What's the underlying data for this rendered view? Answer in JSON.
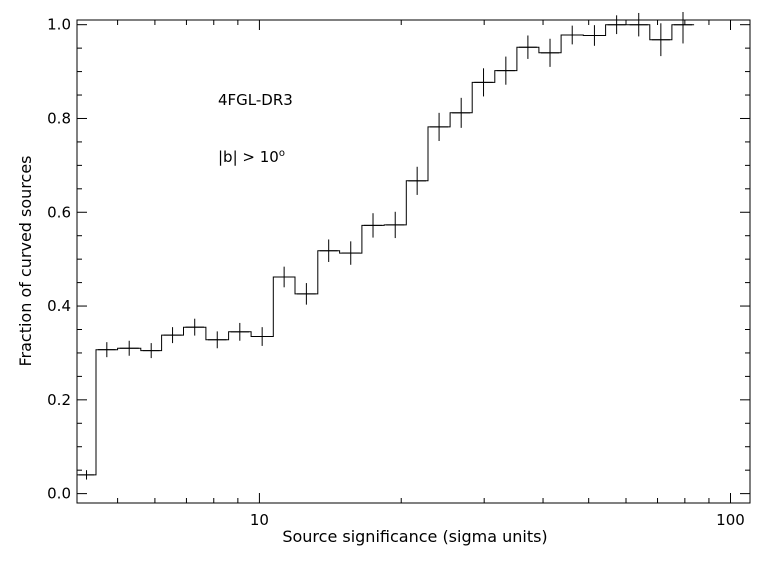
{
  "chart_data": {
    "type": "step",
    "xlabel": "Source significance (sigma units)",
    "ylabel": "Fraction of curved sources",
    "x_scale": "log",
    "xlim": [
      4.1,
      110
    ],
    "ylim": [
      -0.02,
      1.01
    ],
    "x_tick_labels": [
      {
        "x": 10,
        "label": "10"
      },
      {
        "x": 100,
        "label": "100"
      }
    ],
    "x_major_ticks": [
      10,
      100
    ],
    "x_minor_ticks": [
      5,
      6,
      7,
      8,
      9,
      20,
      30,
      40,
      50,
      60,
      70,
      80,
      90
    ],
    "y_ticks": [
      {
        "y": 0.0,
        "label": "0.0"
      },
      {
        "y": 0.2,
        "label": "0.2"
      },
      {
        "y": 0.4,
        "label": "0.4"
      },
      {
        "y": 0.6,
        "label": "0.6"
      },
      {
        "y": 0.8,
        "label": "0.8"
      },
      {
        "y": 1.0,
        "label": "1.0"
      }
    ],
    "y_minor_step": 0.05,
    "annotations": [
      {
        "id": "catalog",
        "text": "4FGL-DR3"
      },
      {
        "id": "latitude-cut",
        "text": "|b| > 10",
        "superscript": "o"
      }
    ],
    "bins": [
      {
        "lo": 4.1,
        "hi": 4.5,
        "y": 0.04,
        "err": 0.01
      },
      {
        "lo": 4.5,
        "hi": 5.0,
        "y": 0.307,
        "err": 0.016
      },
      {
        "lo": 5.0,
        "hi": 5.6,
        "y": 0.31,
        "err": 0.016
      },
      {
        "lo": 5.6,
        "hi": 6.2,
        "y": 0.305,
        "err": 0.016
      },
      {
        "lo": 6.2,
        "hi": 6.9,
        "y": 0.338,
        "err": 0.017
      },
      {
        "lo": 6.9,
        "hi": 7.7,
        "y": 0.355,
        "err": 0.018
      },
      {
        "lo": 7.7,
        "hi": 8.6,
        "y": 0.328,
        "err": 0.018
      },
      {
        "lo": 8.6,
        "hi": 9.6,
        "y": 0.345,
        "err": 0.019
      },
      {
        "lo": 9.6,
        "hi": 10.7,
        "y": 0.335,
        "err": 0.02
      },
      {
        "lo": 10.7,
        "hi": 11.9,
        "y": 0.462,
        "err": 0.022
      },
      {
        "lo": 11.9,
        "hi": 13.3,
        "y": 0.426,
        "err": 0.023
      },
      {
        "lo": 13.3,
        "hi": 14.8,
        "y": 0.518,
        "err": 0.024
      },
      {
        "lo": 14.8,
        "hi": 16.5,
        "y": 0.513,
        "err": 0.025
      },
      {
        "lo": 16.5,
        "hi": 18.4,
        "y": 0.572,
        "err": 0.026
      },
      {
        "lo": 18.4,
        "hi": 20.5,
        "y": 0.573,
        "err": 0.028
      },
      {
        "lo": 20.5,
        "hi": 22.8,
        "y": 0.667,
        "err": 0.03
      },
      {
        "lo": 22.8,
        "hi": 25.4,
        "y": 0.782,
        "err": 0.03
      },
      {
        "lo": 25.4,
        "hi": 28.3,
        "y": 0.812,
        "err": 0.032
      },
      {
        "lo": 28.3,
        "hi": 31.6,
        "y": 0.877,
        "err": 0.03
      },
      {
        "lo": 31.6,
        "hi": 35.2,
        "y": 0.902,
        "err": 0.03
      },
      {
        "lo": 35.2,
        "hi": 39.2,
        "y": 0.952,
        "err": 0.025
      },
      {
        "lo": 39.2,
        "hi": 43.7,
        "y": 0.94,
        "err": 0.03
      },
      {
        "lo": 43.7,
        "hi": 48.7,
        "y": 0.978,
        "err": 0.02
      },
      {
        "lo": 48.7,
        "hi": 54.3,
        "y": 0.977,
        "err": 0.022
      },
      {
        "lo": 54.3,
        "hi": 60.5,
        "y": 1.0,
        "err": 0.02
      },
      {
        "lo": 60.5,
        "hi": 67.4,
        "y": 1.0,
        "err": 0.025
      },
      {
        "lo": 67.4,
        "hi": 75.1,
        "y": 0.968,
        "err": 0.035
      },
      {
        "lo": 75.1,
        "hi": 83.7,
        "y": 1.0,
        "err": 0.04
      }
    ]
  }
}
